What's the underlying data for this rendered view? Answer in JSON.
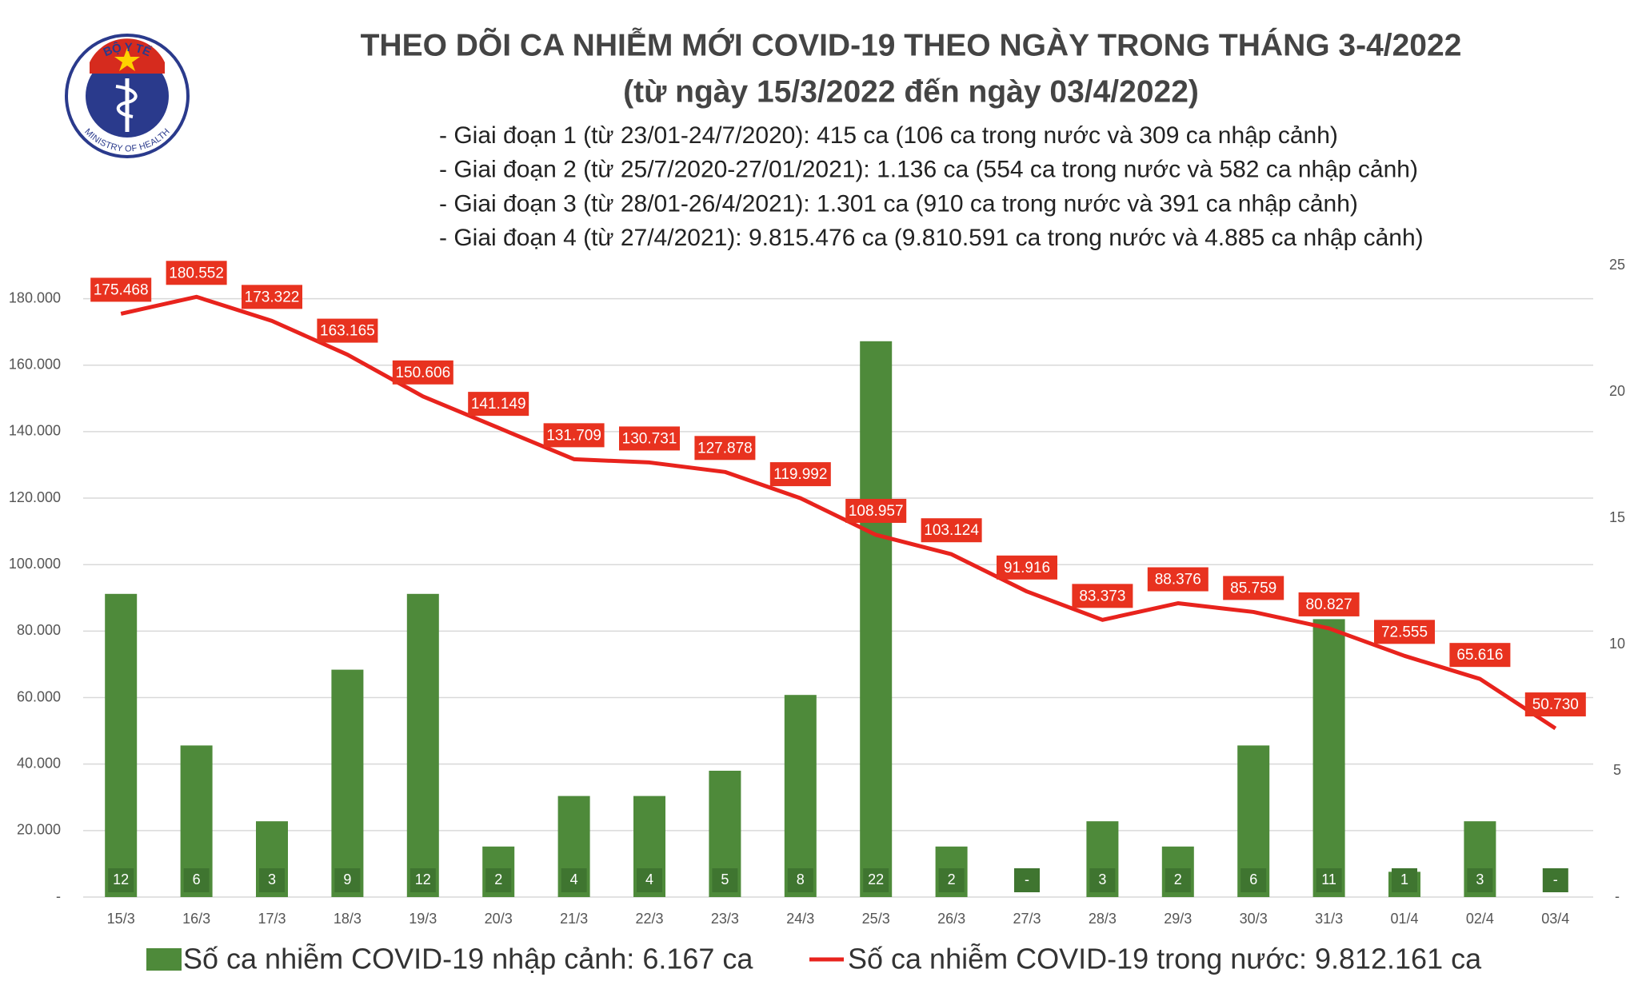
{
  "logo": {
    "top": "BỘ Y TẾ",
    "bottom": "MINISTRY OF HEALTH"
  },
  "chart_data": {
    "type": "bar",
    "title": "THEO DÕI CA NHIỄM MỚI COVID-19 THEO NGÀY TRONG THÁNG 3-4/2022",
    "subtitle": "(từ ngày 15/3/2022 đến ngày 03/4/2022)",
    "notes": [
      "- Giai đoạn 1 (từ 23/01-24/7/2020): 415 ca (106 ca trong nước và 309 ca nhập cảnh)",
      "- Giai đoạn 2 (từ 25/7/2020-27/01/2021): 1.136 ca (554 ca trong nước và 582 ca nhập cảnh)",
      "- Giai đoạn 3 (từ 28/01-26/4/2021): 1.301 ca (910 ca trong nước và 391 ca nhập cảnh)",
      "- Giai đoạn 4 (từ 27/4/2021): 9.815.476 ca (9.810.591 ca trong nước và 4.885 ca nhập cảnh)"
    ],
    "categories": [
      "15/3",
      "16/3",
      "17/3",
      "18/3",
      "19/3",
      "20/3",
      "21/3",
      "22/3",
      "23/3",
      "24/3",
      "25/3",
      "26/3",
      "27/3",
      "28/3",
      "29/3",
      "30/3",
      "31/3",
      "01/4",
      "02/4",
      "03/4"
    ],
    "series": [
      {
        "name": "Số ca nhiễm COVID-19 nhập cảnh: 6.167 ca",
        "type": "bar",
        "axis": "y2",
        "color": "#4e8a3a",
        "values": [
          12,
          6,
          3,
          9,
          12,
          2,
          4,
          4,
          5,
          8,
          22,
          2,
          0,
          3,
          2,
          6,
          11,
          1,
          3,
          0
        ],
        "value_labels": [
          "12",
          "6",
          "3",
          "9",
          "12",
          "2",
          "4",
          "4",
          "5",
          "8",
          "22",
          "2",
          "-",
          "3",
          "2",
          "6",
          "11",
          "1",
          "3",
          "-"
        ]
      },
      {
        "name": "Số ca nhiễm COVID-19 trong nước: 9.812.161 ca",
        "type": "line",
        "color": "#e8231d",
        "values": [
          175468,
          180552,
          173322,
          163165,
          150606,
          141149,
          131709,
          130731,
          127878,
          119992,
          108957,
          103124,
          91916,
          83373,
          88376,
          85759,
          80827,
          72555,
          65616,
          50730
        ],
        "value_labels": [
          "175.468",
          "180.552",
          "173.322",
          "163.165",
          "150.606",
          "141.149",
          "131.709",
          "130.731",
          "127.878",
          "119.992",
          "108.957",
          "103.124",
          "91.916",
          "83.373",
          "88.376",
          "85.759",
          "80.827",
          "72.555",
          "65.616",
          "50.730"
        ]
      }
    ],
    "ylim": [
      0,
      190000
    ],
    "yticks": [
      {
        "value": 0,
        "label": "-"
      },
      {
        "value": 20000,
        "label": "20.000"
      },
      {
        "value": 40000,
        "label": "40.000"
      },
      {
        "value": 60000,
        "label": "60.000"
      },
      {
        "value": 80000,
        "label": "80.000"
      },
      {
        "value": 100000,
        "label": "100.000"
      },
      {
        "value": 120000,
        "label": "120.000"
      },
      {
        "value": 140000,
        "label": "140.000"
      },
      {
        "value": 160000,
        "label": "160.000"
      },
      {
        "value": 180000,
        "label": "180.000"
      }
    ],
    "y2lim": [
      0,
      25
    ],
    "y2ticks": [
      {
        "value": 0,
        "label": "-"
      },
      5,
      10,
      15,
      20,
      25
    ],
    "grid": true
  }
}
